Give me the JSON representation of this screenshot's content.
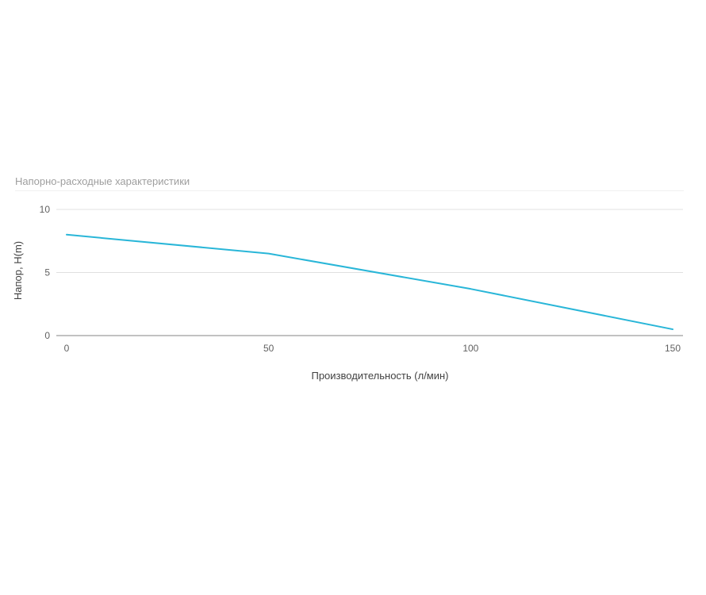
{
  "chart_data": {
    "type": "line",
    "title": "Напорно-расходные характеристики",
    "xlabel": "Производительность (л/мин)",
    "ylabel": "Напор, Н(m)",
    "xlim": [
      0,
      150
    ],
    "ylim": [
      0,
      10
    ],
    "x_ticks": [
      "0",
      "50",
      "100",
      "150"
    ],
    "y_ticks": [
      "0",
      "5",
      "10"
    ],
    "grid": true,
    "legend": "none",
    "series": [
      {
        "color": "#29b6d8",
        "x": [
          0,
          50,
          100,
          150
        ],
        "y": [
          8,
          6.5,
          3.7,
          0.5
        ]
      }
    ]
  }
}
